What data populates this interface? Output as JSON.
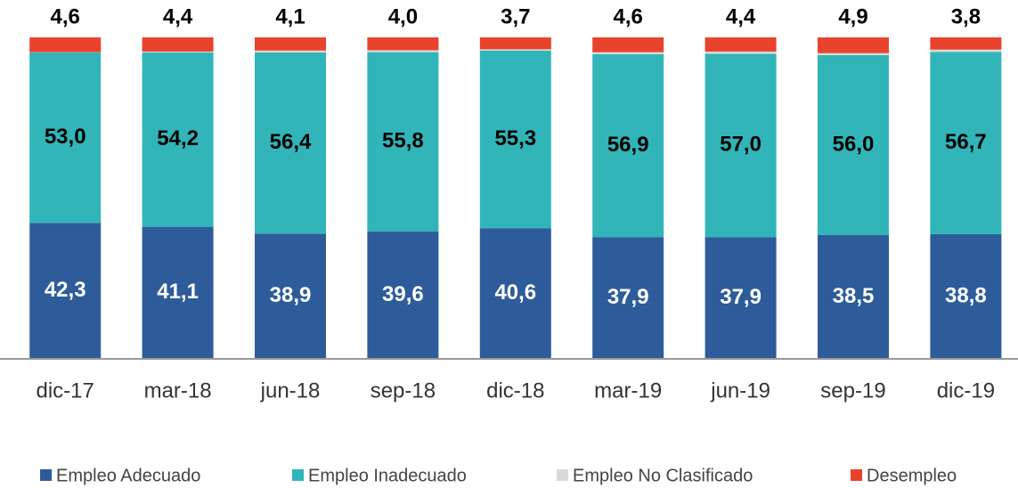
{
  "chart_data": {
    "type": "stacked_bar",
    "categories": [
      "dic-17",
      "mar-18",
      "jun-18",
      "sep-18",
      "dic-18",
      "mar-19",
      "jun-19",
      "sep-19",
      "dic-19"
    ],
    "ylim": [
      0,
      100
    ],
    "series": [
      {
        "name": "Empleo Adecuado",
        "color": "#2e5c9a",
        "values": [
          42.3,
          41.1,
          38.9,
          39.6,
          40.6,
          37.9,
          37.9,
          38.5,
          38.8
        ],
        "value_labels": [
          "42,3",
          "41,1",
          "38,9",
          "39,6",
          "40,6",
          "37,9",
          "37,9",
          "38,5",
          "38,8"
        ]
      },
      {
        "name": "Empleo Inadecuado",
        "color": "#31b5b8",
        "values": [
          53.0,
          54.2,
          56.4,
          55.8,
          55.3,
          56.9,
          57.0,
          56.0,
          56.7
        ],
        "value_labels": [
          "53,0",
          "54,2",
          "56,4",
          "55,8",
          "55,3",
          "56,9",
          "57,0",
          "56,0",
          "56,7"
        ]
      },
      {
        "name": "Empleo No Clasificado",
        "color": "#d9d9d9",
        "values": [
          0.1,
          0.3,
          0.6,
          0.6,
          0.4,
          0.6,
          0.7,
          0.6,
          0.7
        ]
      },
      {
        "name": "Desempleo",
        "color": "#e8432d",
        "values": [
          4.6,
          4.4,
          4.1,
          4.0,
          3.7,
          4.6,
          4.4,
          4.9,
          3.8
        ],
        "value_labels": [
          "4,6",
          "4,4",
          "4,1",
          "4,0",
          "3,7",
          "4,6",
          "4,4",
          "4,9",
          "3,8"
        ]
      }
    ]
  }
}
